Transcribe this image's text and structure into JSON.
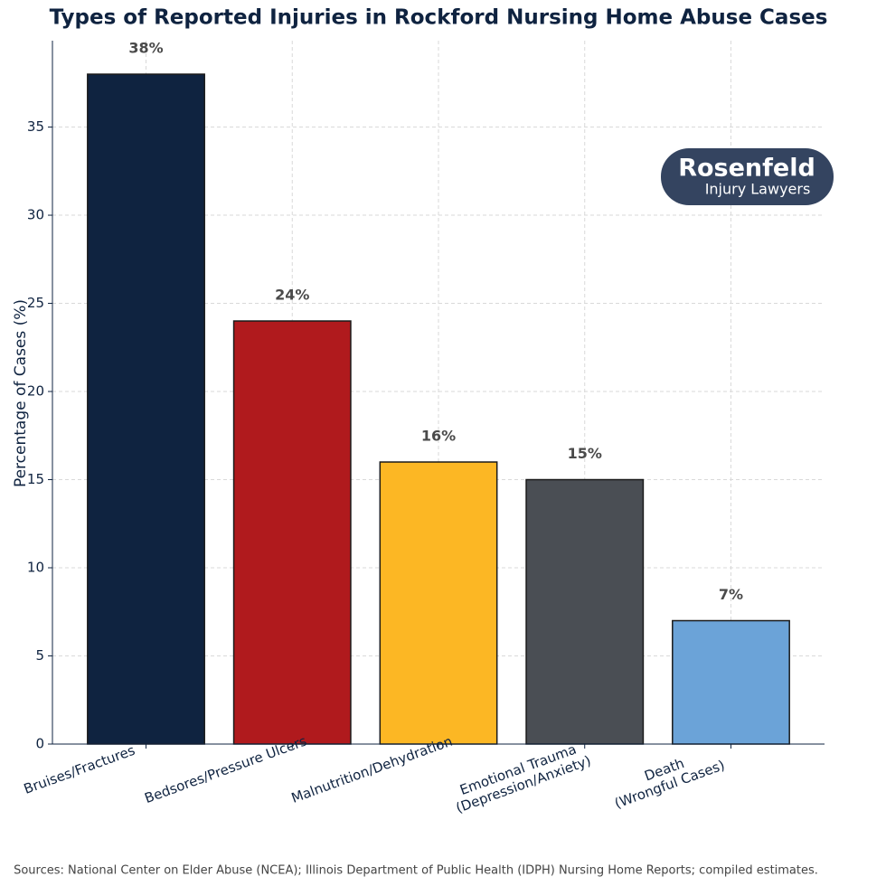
{
  "chart_data": {
    "type": "bar",
    "title": "Types of Reported Injuries in Rockford Nursing Home Abuse Cases",
    "y_label": "Percentage of Cases (%)",
    "categories": [
      "Bruises/Fractures",
      "Bedsores/Pressure Ulcers",
      "Malnutrition/Dehydration",
      "Emotional Trauma\n(Depression/Anxiety)",
      "Death\n(Wrongful Cases)"
    ],
    "values": [
      38,
      24,
      16,
      15,
      7
    ],
    "value_labels": [
      "38%",
      "24%",
      "16%",
      "15%",
      "7%"
    ],
    "colors": [
      "#0f2340",
      "#b01a1d",
      "#fcb724",
      "#4a4e54",
      "#6ba3d8"
    ],
    "ylim": [
      0,
      39.9
    ],
    "yticks": [
      0,
      5,
      10,
      15,
      20,
      25,
      30,
      35
    ],
    "grid": true,
    "logo": {
      "name": "Rosenfeld",
      "subtitle": "Injury Lawyers"
    },
    "source": "Sources: National Center on Elder Abuse (NCEA); Illinois Department of Public Health (IDPH) Nursing Home Reports; compiled estimates."
  }
}
